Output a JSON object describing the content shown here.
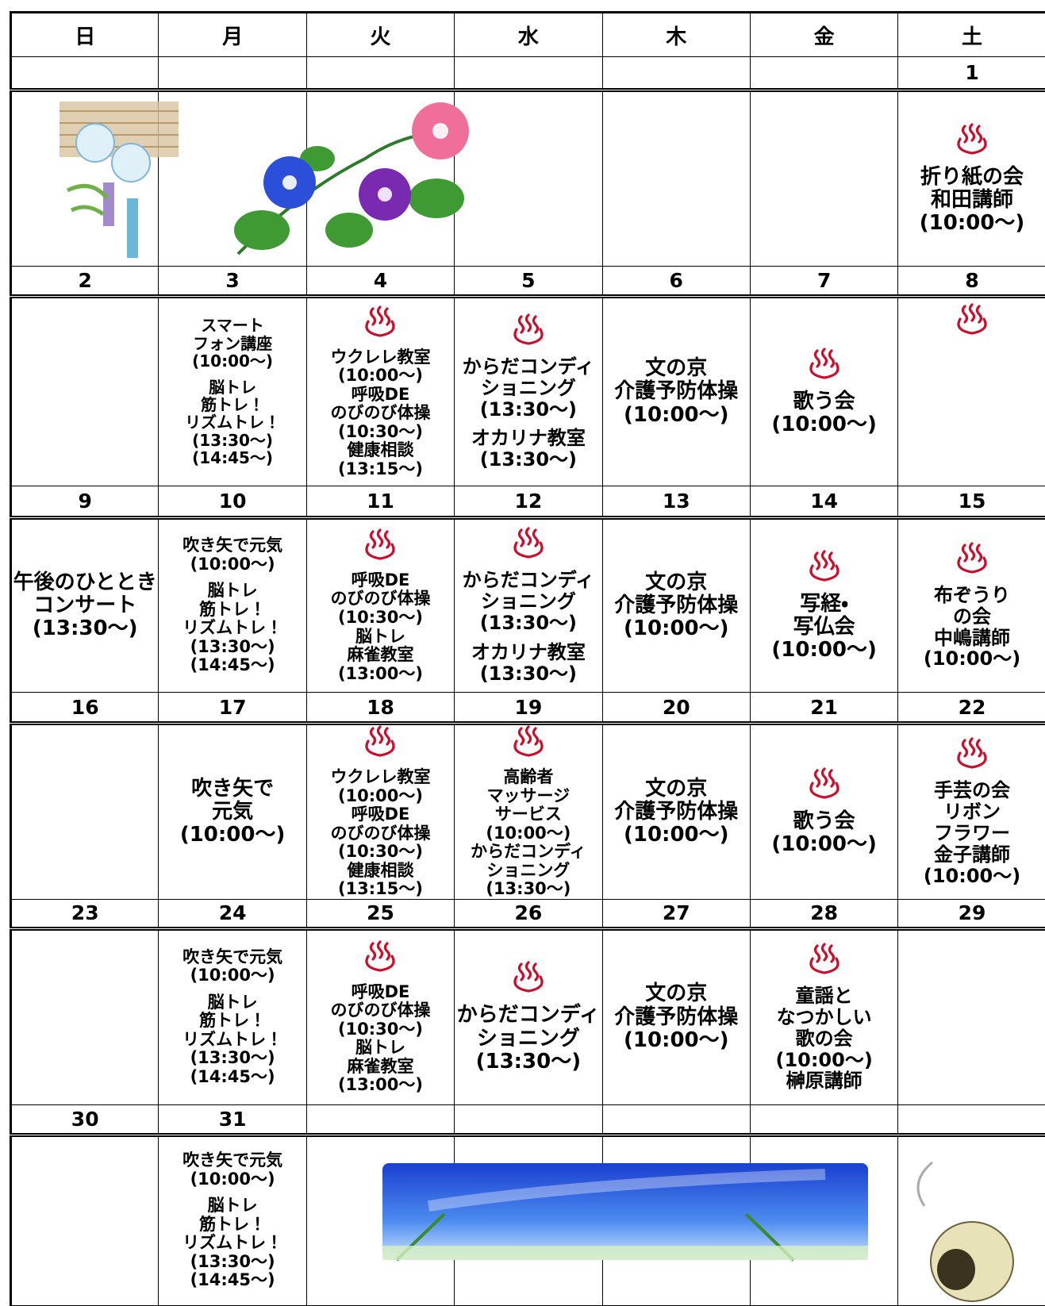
{
  "weekdays": [
    "日",
    "月",
    "火",
    "水",
    "木",
    "金",
    "土"
  ],
  "weeks": [
    {
      "dates": [
        null,
        null,
        null,
        null,
        null,
        null,
        1
      ],
      "cells": [
        {
          "blocks": []
        },
        {
          "blocks": []
        },
        {
          "blocks": []
        },
        {
          "blocks": []
        },
        {
          "blocks": []
        },
        {
          "blocks": []
        },
        {
          "onsen": true,
          "blocks": [
            [
              "折り紙の会",
              "和田講師",
              "(10:00～)"
            ]
          ]
        }
      ]
    },
    {
      "dates": [
        2,
        3,
        4,
        5,
        6,
        7,
        8
      ],
      "cells": [
        {
          "blocks": []
        },
        {
          "blocks": [
            [
              "スマート",
              "フォン講座",
              "(10:00～)"
            ],
            [
              "脳トレ",
              "筋トレ！",
              "リズムトレ！",
              "(13:30～)",
              "(14:45～)"
            ]
          ]
        },
        {
          "onsen": true,
          "blocks": [
            [
              "ウクレレ教室",
              "(10:00～)",
              "呼吸DE",
              "のびのび体操",
              "(10:30～)",
              "健康相談",
              "(13:15～)"
            ]
          ]
        },
        {
          "onsen": true,
          "blocks": [
            [
              "からだコンディ",
              "ショニング",
              "(13:30～)"
            ],
            [
              "オカリナ教室",
              "(13:30～)"
            ]
          ]
        },
        {
          "blocks": [
            [
              "文の京",
              "介護予防体操",
              "(10:00～)"
            ]
          ]
        },
        {
          "onsen": true,
          "blocks": [
            [
              "歌う会",
              "(10:00～)"
            ]
          ]
        },
        {
          "onsen": true,
          "blocks": []
        }
      ]
    },
    {
      "dates": [
        9,
        10,
        11,
        12,
        13,
        14,
        15
      ],
      "cells": [
        {
          "blocks": [
            [
              "午後のひととき",
              "コンサート",
              "(13:30～)"
            ]
          ]
        },
        {
          "blocks": [
            [
              "吹き矢で元気",
              "(10:00～)"
            ],
            [
              "脳トレ",
              "筋トレ！",
              "リズムトレ！",
              "(13:30～)",
              "(14:45～)"
            ]
          ]
        },
        {
          "onsen": true,
          "blocks": [
            [
              "呼吸DE",
              "のびのび体操",
              "(10:30～)",
              "脳トレ",
              "麻雀教室",
              "(13:00～)"
            ]
          ]
        },
        {
          "onsen": true,
          "blocks": [
            [
              "からだコンディ",
              "ショニング",
              "(13:30～)"
            ],
            [
              "オカリナ教室",
              "(13:30～)"
            ]
          ]
        },
        {
          "blocks": [
            [
              "文の京",
              "介護予防体操",
              "(10:00～)"
            ]
          ]
        },
        {
          "onsen": true,
          "blocks": [
            [
              "写経・",
              "写仏会",
              "(10:00～)"
            ]
          ]
        },
        {
          "onsen": true,
          "blocks": [
            [
              "布ぞうり",
              "の会",
              "中嶋講師",
              "(10:00～)"
            ]
          ]
        }
      ]
    },
    {
      "dates": [
        16,
        17,
        18,
        19,
        20,
        21,
        22
      ],
      "cells": [
        {
          "blocks": []
        },
        {
          "blocks": [
            [
              "吹き矢で",
              "元気",
              "(10:00～)"
            ]
          ]
        },
        {
          "onsen": true,
          "blocks": [
            [
              "ウクレレ教室",
              "(10:00～)",
              "呼吸DE",
              "のびのび体操",
              "(10:30～)",
              "健康相談",
              "(13:15～)"
            ]
          ]
        },
        {
          "onsen": true,
          "blocks": [
            [
              "高齢者",
              "マッサージ",
              "サービス",
              "(10:00～)",
              "からだコンディ",
              "ショニング",
              "(13:30～)"
            ]
          ]
        },
        {
          "blocks": [
            [
              "文の京",
              "介護予防体操",
              "(10:00～)"
            ]
          ]
        },
        {
          "onsen": true,
          "blocks": [
            [
              "歌う会",
              "(10:00～)"
            ]
          ]
        },
        {
          "onsen": true,
          "blocks": [
            [
              "手芸の会",
              "リボン",
              "フラワー",
              "金子講師",
              "(10:00～)"
            ]
          ]
        }
      ]
    },
    {
      "dates": [
        23,
        24,
        25,
        26,
        27,
        28,
        29
      ],
      "cells": [
        {
          "blocks": []
        },
        {
          "blocks": [
            [
              "吹き矢で元気",
              "(10:00～)"
            ],
            [
              "脳トレ",
              "筋トレ！",
              "リズムトレ！",
              "(13:30～)",
              "(14:45～)"
            ]
          ]
        },
        {
          "onsen": true,
          "blocks": [
            [
              "呼吸DE",
              "のびのび体操",
              "(10:30～)",
              "脳トレ",
              "麻雀教室",
              "(13:00～)"
            ]
          ]
        },
        {
          "onsen": true,
          "blocks": [
            [
              "からだコンディ",
              "ショニング",
              "(13:30～)"
            ]
          ]
        },
        {
          "blocks": [
            [
              "文の京",
              "介護予防体操",
              "(10:00～)"
            ]
          ]
        },
        {
          "onsen": true,
          "blocks": [
            [
              "童謡と",
              "なつかしい",
              "歌の会",
              "(10:00～)",
              "榊原講師"
            ]
          ]
        },
        {
          "blocks": []
        }
      ]
    },
    {
      "dates": [
        30,
        31,
        null,
        null,
        null,
        null,
        null
      ],
      "cells": [
        {
          "blocks": []
        },
        {
          "blocks": [
            [
              "吹き矢で元気",
              "(10:00～)"
            ],
            [
              "脳トレ",
              "筋トレ！",
              "リズムトレ！",
              "(13:30～)",
              "(14:45～)"
            ]
          ]
        },
        {
          "blocks": []
        },
        {
          "blocks": []
        },
        {
          "blocks": []
        },
        {
          "blocks": []
        },
        {
          "blocks": []
        }
      ]
    }
  ]
}
